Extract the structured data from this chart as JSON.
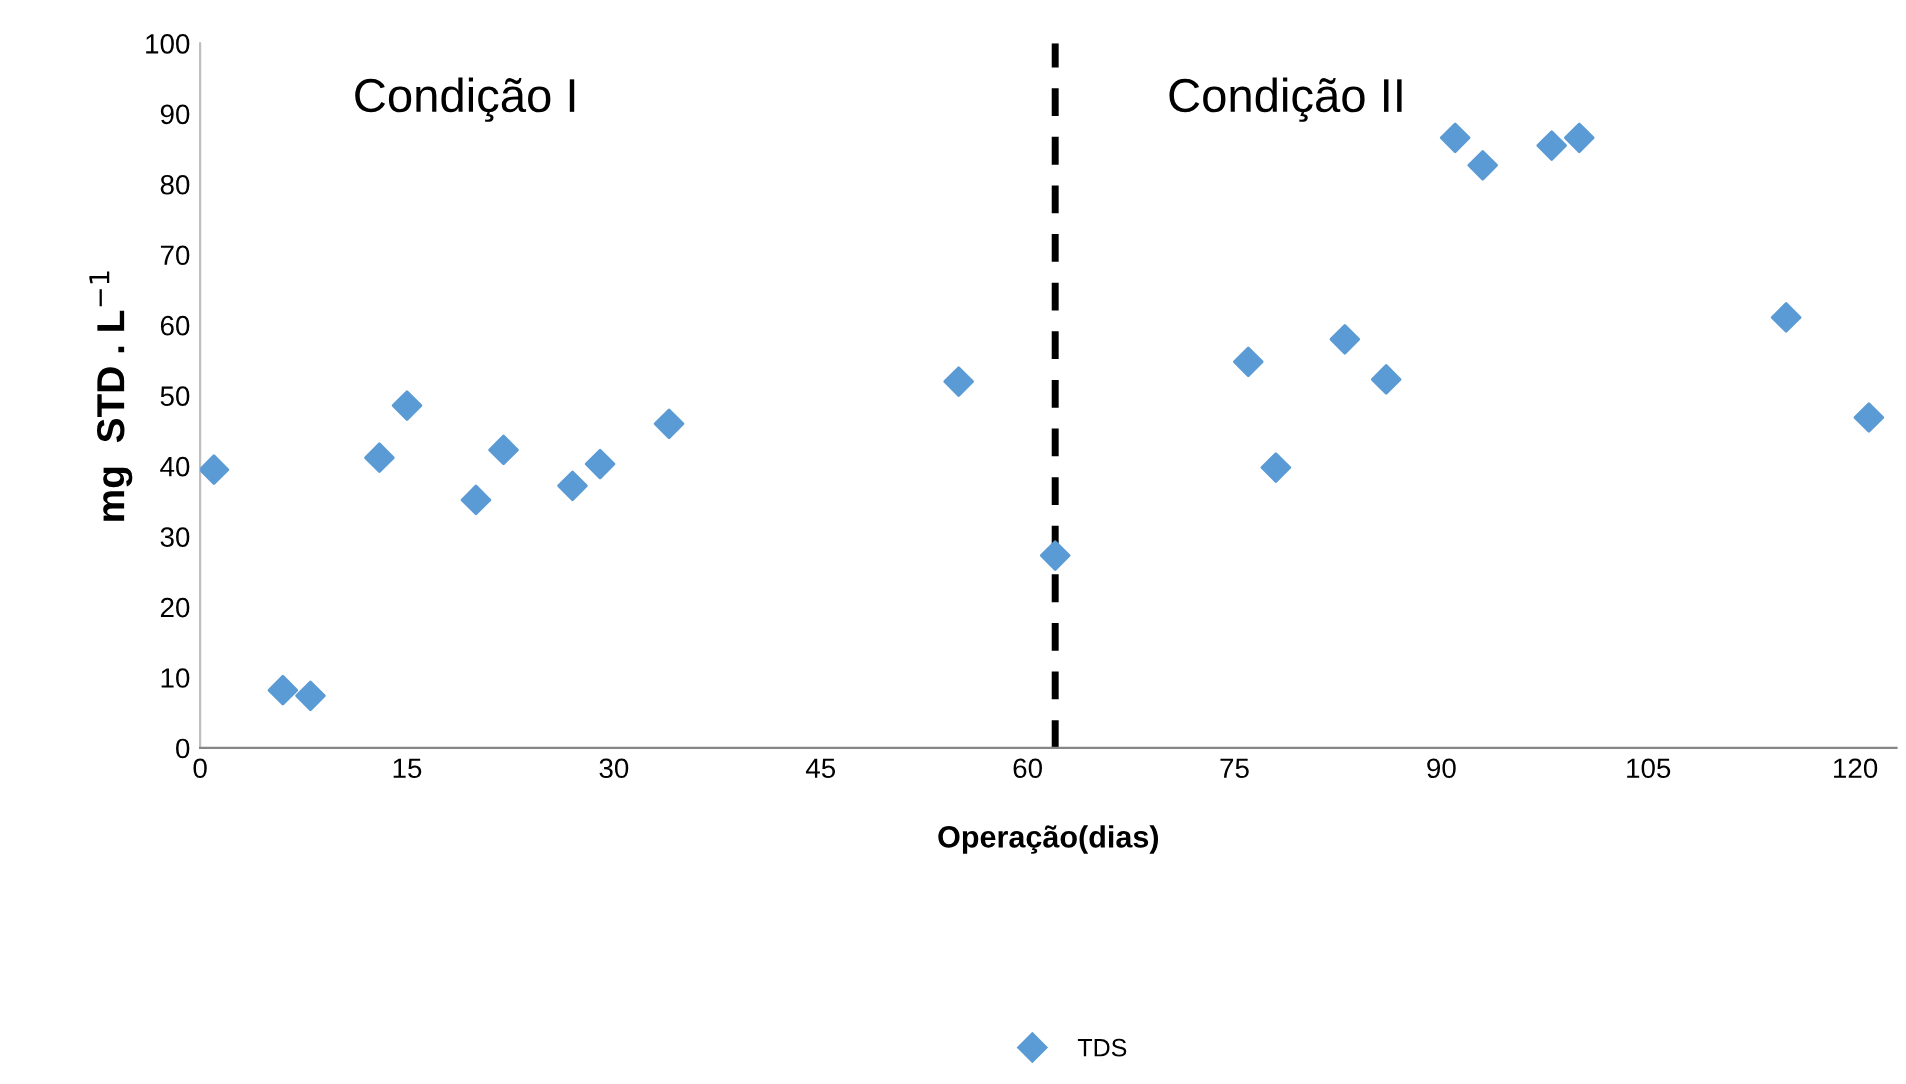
{
  "chart_data": {
    "type": "scatter",
    "xlabel": "Operação(dias)",
    "ylabel": "mg  STD . L$^{−1}$",
    "series": [
      {
        "name": "TDS",
        "color": "#5b9bd5",
        "x": [
          1,
          6,
          8,
          13,
          15,
          20,
          22,
          27,
          29,
          34,
          55,
          62,
          76,
          78,
          83,
          86,
          91,
          93,
          98,
          100,
          115,
          121
        ],
        "values": [
          39.5,
          8.2,
          7.4,
          41.2,
          48.6,
          35.2,
          42.3,
          37.2,
          40.3,
          46,
          52,
          27.3,
          54.8,
          39.8,
          58,
          52.3,
          86.6,
          82.7,
          85.5,
          86.6,
          61.1,
          46.9
        ]
      }
    ],
    "marker": "diamond",
    "xlim": [
      0,
      123
    ],
    "xticks": [
      0,
      15,
      30,
      45,
      60,
      75,
      90,
      105,
      120
    ],
    "ylim": [
      0,
      100
    ],
    "yticks": [
      0,
      10,
      20,
      30,
      40,
      50,
      60,
      70,
      80,
      90,
      100
    ],
    "grid": false,
    "legend": "bottom",
    "ref_lines": [
      {
        "axis": "x",
        "value": 62,
        "label": null,
        "color": "#000000",
        "line_style": "dashed"
      }
    ],
    "annotations": [
      "Condição I",
      "Condição II"
    ]
  }
}
